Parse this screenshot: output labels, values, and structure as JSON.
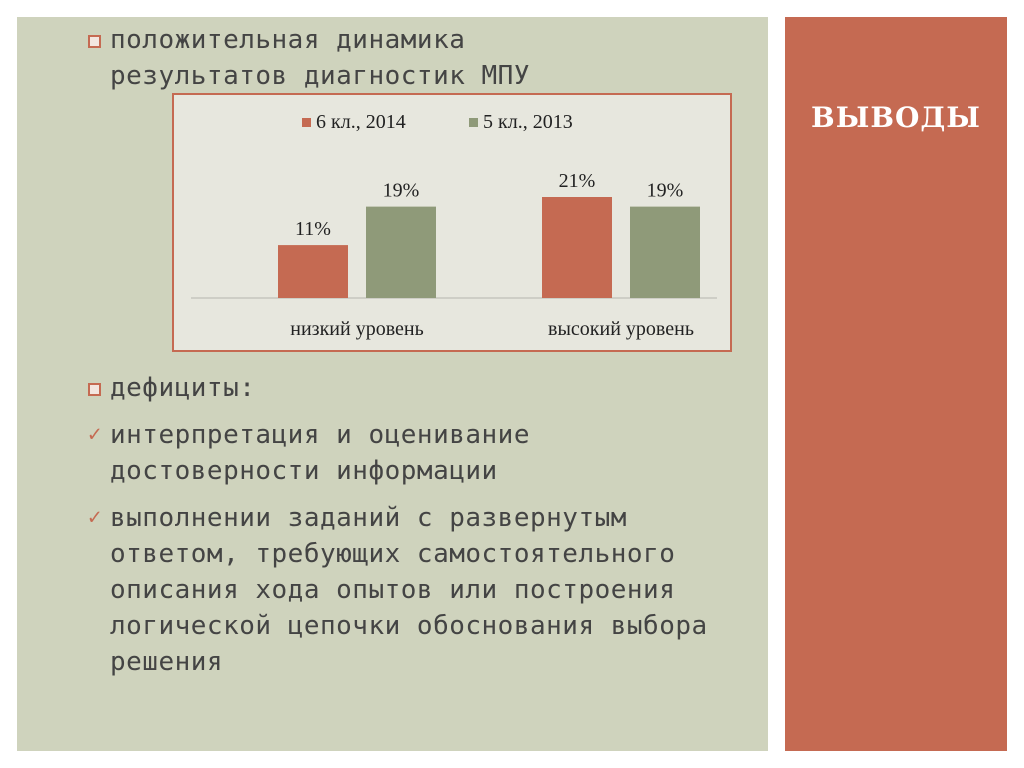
{
  "right_panel": {
    "title": "ВЫВОДЫ"
  },
  "bullets": {
    "b1": "положительная динамика результатов диагностик МПУ",
    "b2": "дефициты:",
    "b3": "интерпретация  и оценивание достоверности информации",
    "b4": "выполнении заданий с развернутым ответом, требующих самостоятельного описания хода опытов или построения логической цепочки обоснования выбора решения"
  },
  "icons": {
    "square_bullet": "square-bullet-icon",
    "check_bullet": "check-bullet-icon"
  },
  "colors": {
    "accent": "#c56a52",
    "series2": "#8f9a79",
    "panel": "#cfd3bd",
    "chart_bg": "#e7e7de"
  },
  "chart_data": {
    "type": "bar",
    "categories": [
      "низкий уровень",
      "высокий уровень"
    ],
    "series": [
      {
        "name": "6 кл., 2014",
        "values": [
          11,
          21
        ],
        "labels": [
          "11%",
          "21%"
        ],
        "color": "#c56a52"
      },
      {
        "name": "5 кл., 2013",
        "values": [
          19,
          19
        ],
        "labels": [
          "19%",
          "19%"
        ],
        "color": "#8f9a79"
      }
    ],
    "ylim": [
      0,
      21
    ],
    "grid": false,
    "legend": "top"
  }
}
